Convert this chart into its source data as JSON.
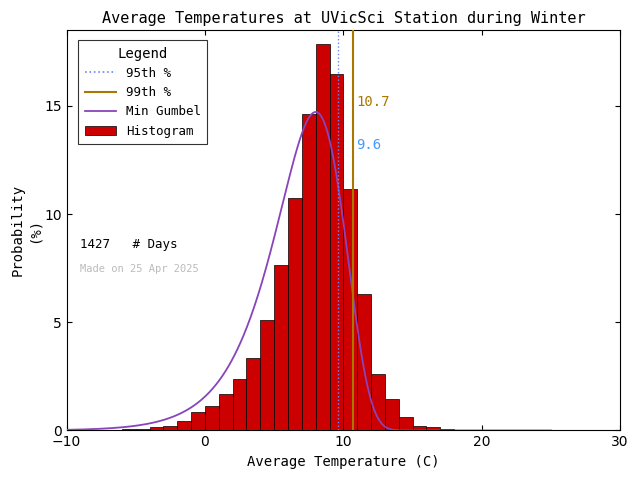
{
  "title": "Average Temperatures at UVicSci Station during Winter",
  "xlabel": "Average Temperature (C)",
  "ylabel": "Probability\n(%)",
  "xlim": [
    -10,
    30
  ],
  "ylim": [
    0,
    18.5
  ],
  "xticks": [
    -10,
    0,
    10,
    20,
    30
  ],
  "yticks": [
    0,
    5,
    10,
    15
  ],
  "bin_edges": [
    -10,
    -9,
    -8,
    -7,
    -6,
    -5,
    -4,
    -3,
    -2,
    -1,
    0,
    1,
    2,
    3,
    4,
    5,
    6,
    7,
    8,
    9,
    10,
    11,
    12,
    13,
    14,
    15,
    16,
    17,
    18,
    19,
    20,
    21,
    22,
    23,
    24,
    25,
    26,
    27,
    28,
    29,
    30
  ],
  "bar_heights": [
    0.0,
    0.0,
    0.0,
    0.0,
    0.07,
    0.07,
    0.14,
    0.21,
    0.42,
    0.84,
    1.12,
    1.68,
    2.38,
    3.36,
    5.11,
    7.64,
    10.72,
    14.64,
    17.87,
    16.47,
    11.14,
    6.3,
    2.59,
    1.47,
    0.63,
    0.21,
    0.14,
    0.07,
    0.0,
    0.0,
    0.0,
    0.0,
    0.0,
    0.0,
    0.0,
    0.0,
    0.0,
    0.0,
    0.0,
    0.0
  ],
  "bar_color": "#cc0000",
  "bar_edge_color": "#000000",
  "gumbel_mu": 8.0,
  "gumbel_beta": 2.5,
  "percentile_95": 9.6,
  "percentile_99": 10.7,
  "n_days": 1427,
  "made_on": "Made on 25 Apr 2025",
  "legend_title": "Legend",
  "color_95th": "#6688ff",
  "color_99th": "#aa7700",
  "color_gumbel": "#8844bb",
  "annotation_95_color": "#4499ff",
  "annotation_99_color": "#aa7700",
  "background_color": "#ffffff",
  "title_fontsize": 11,
  "axis_fontsize": 10,
  "legend_fontsize": 9,
  "tick_fontsize": 10
}
